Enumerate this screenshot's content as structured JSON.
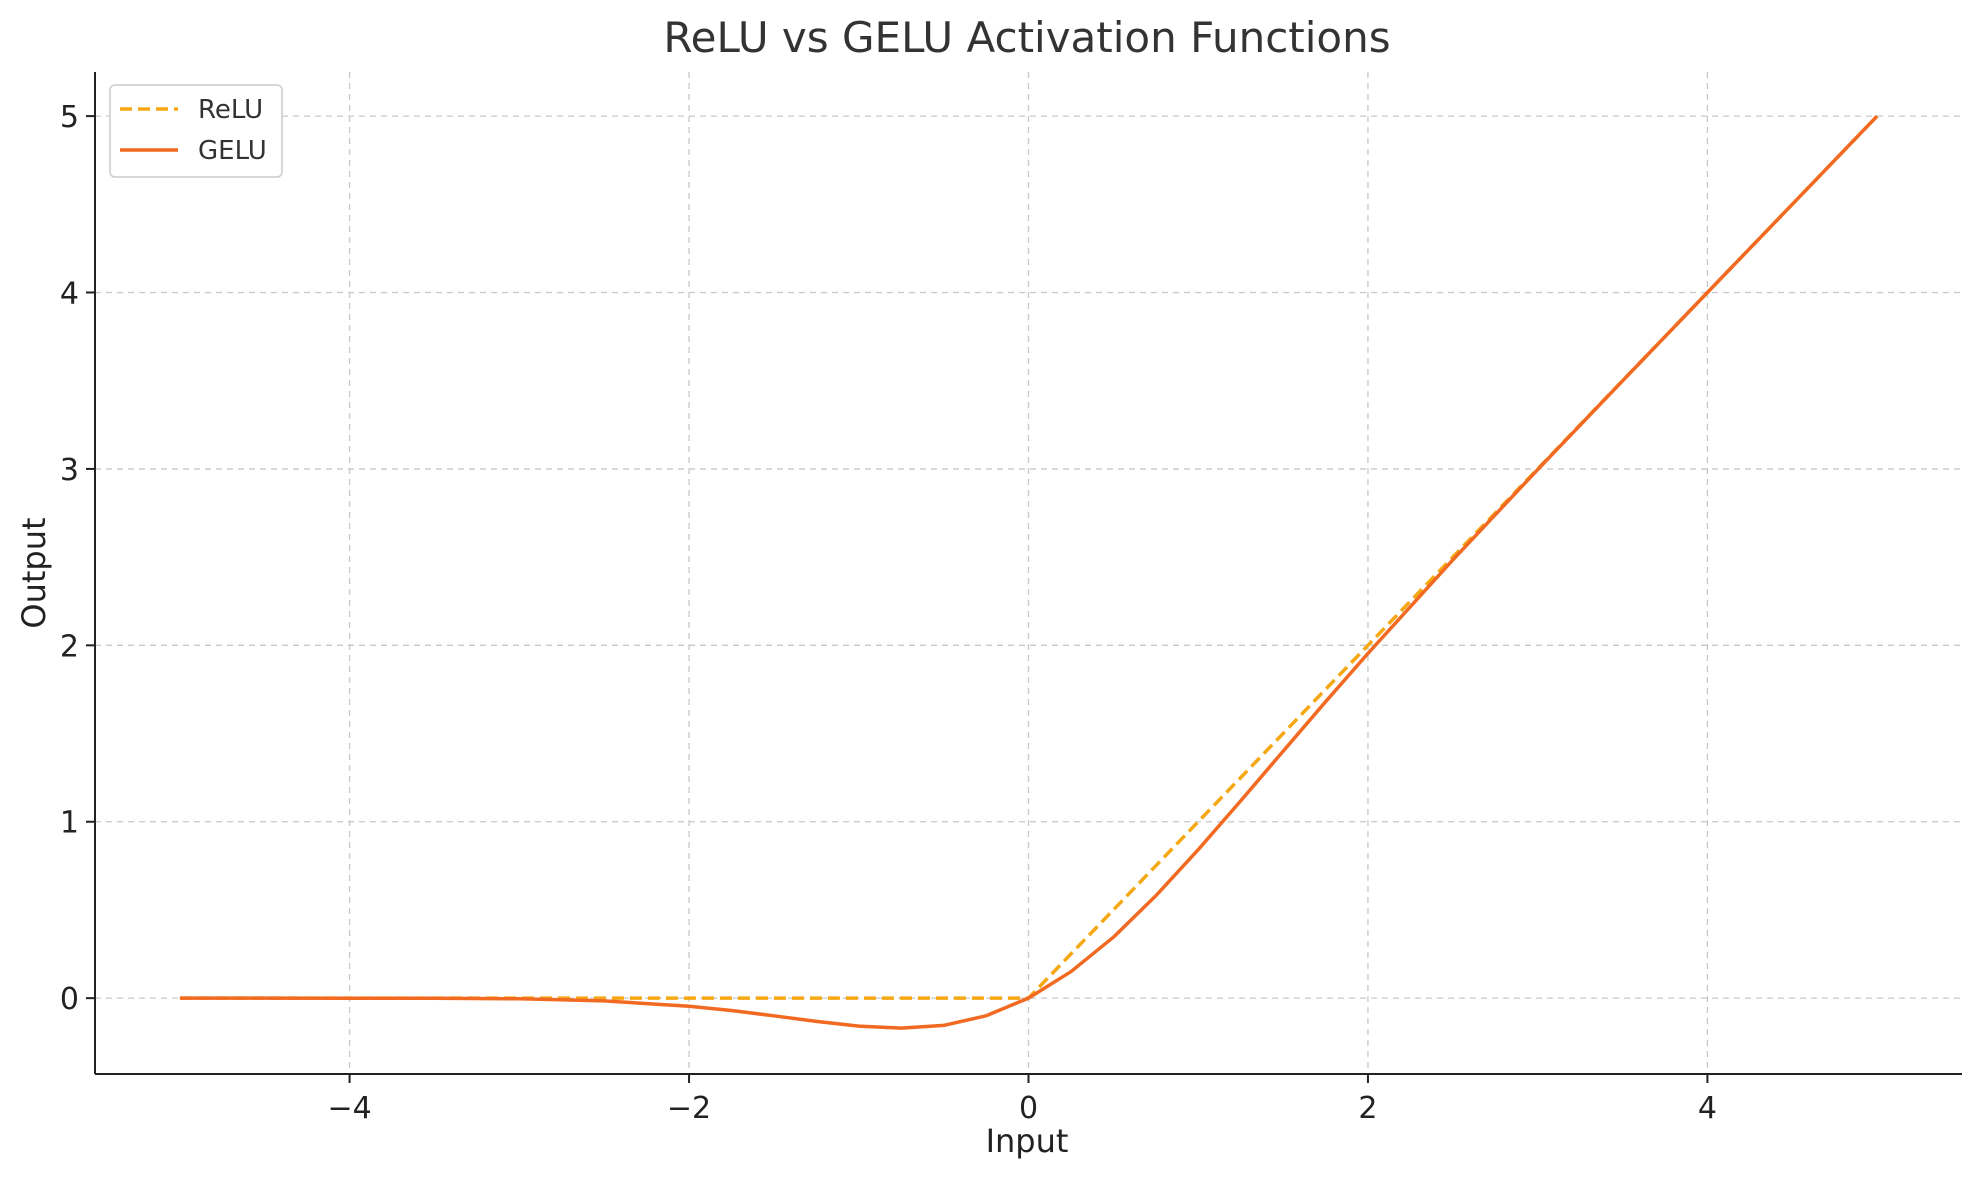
{
  "chart_data": {
    "type": "line",
    "title": "ReLU vs GELU Activation Functions",
    "xlabel": "Input",
    "ylabel": "Output",
    "xlim": [
      -5.5,
      5.5
    ],
    "ylim": [
      -0.43,
      5.25
    ],
    "xticks": [
      -4,
      -2,
      0,
      2,
      4
    ],
    "xtick_labels": [
      "−4",
      "−2",
      "0",
      "2",
      "4"
    ],
    "yticks": [
      0,
      1,
      2,
      3,
      4,
      5
    ],
    "ytick_labels": [
      "0",
      "1",
      "2",
      "3",
      "4",
      "5"
    ],
    "grid": true,
    "legend_position": "top-left",
    "x": [
      -5.0,
      -4.5,
      -4.0,
      -3.5,
      -3.0,
      -2.5,
      -2.0,
      -1.75,
      -1.5,
      -1.25,
      -1.0,
      -0.75,
      -0.5,
      -0.25,
      0.0,
      0.25,
      0.5,
      0.75,
      1.0,
      1.25,
      1.5,
      1.75,
      2.0,
      2.5,
      3.0,
      3.5,
      4.0,
      4.5,
      5.0
    ],
    "series": [
      {
        "name": "ReLU",
        "color": "#F5A814",
        "line_style": "dashed",
        "values": [
          0,
          0,
          0,
          0,
          0,
          0,
          0,
          0,
          0,
          0,
          0,
          0,
          0,
          0,
          0.0,
          0.25,
          0.5,
          0.75,
          1.0,
          1.25,
          1.5,
          1.75,
          2.0,
          2.5,
          3.0,
          3.5,
          4.0,
          4.5,
          5.0
        ]
      },
      {
        "name": "GELU",
        "color": "#F26A21",
        "line_style": "solid",
        "values": [
          0.0,
          0.0,
          -0.0001,
          -0.0008,
          -0.0036,
          -0.0155,
          -0.0455,
          -0.0702,
          -0.1002,
          -0.132,
          -0.1587,
          -0.17,
          -0.1543,
          -0.1003,
          0.0,
          0.1497,
          0.3457,
          0.58,
          0.8413,
          1.118,
          1.3998,
          1.6798,
          1.9545,
          2.4845,
          2.9964,
          3.4992,
          3.9999,
          4.5,
          5.0
        ]
      }
    ]
  }
}
